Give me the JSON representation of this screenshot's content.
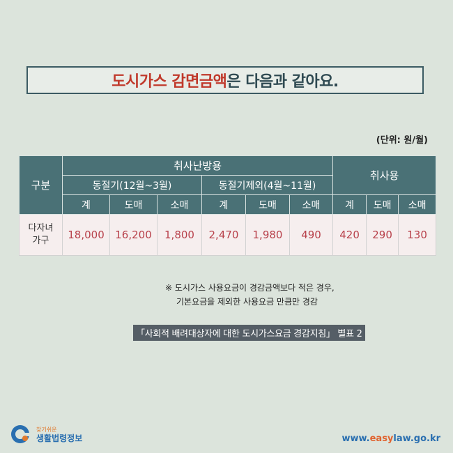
{
  "title": {
    "highlight": "도시가스 감면금액",
    "rest": "은 다음과 같아요."
  },
  "unit": "(단위: 원/월)",
  "table": {
    "col_gubun": "구분",
    "group_main": "취사난방용",
    "group_cook": "취사용",
    "sub_winter": "동절기(12월~3월)",
    "sub_other": "동절기제외(4월~11월)",
    "cols": [
      "계",
      "도매",
      "소매",
      "계",
      "도매",
      "소매",
      "계",
      "도매",
      "소매"
    ],
    "row_label_1": "다자녀",
    "row_label_2": "가구",
    "values": [
      "18,000",
      "16,200",
      "1,800",
      "2,470",
      "1,980",
      "490",
      "420",
      "290",
      "130"
    ]
  },
  "note": {
    "line1": "※ 도시가스 사용요금이 경감금액보다 적은 경우,",
    "line2": "기본요금을 제외한 사용요금 만큼만 경감"
  },
  "source": "「사회적 배려대상자에 대한 도시가스요금 경감지침」 별표 2",
  "logo": {
    "small": "찾기쉬운",
    "big": "생활법령정보"
  },
  "url": {
    "pre": "www.",
    "accent": "easy",
    "post": "law.go.kr"
  }
}
